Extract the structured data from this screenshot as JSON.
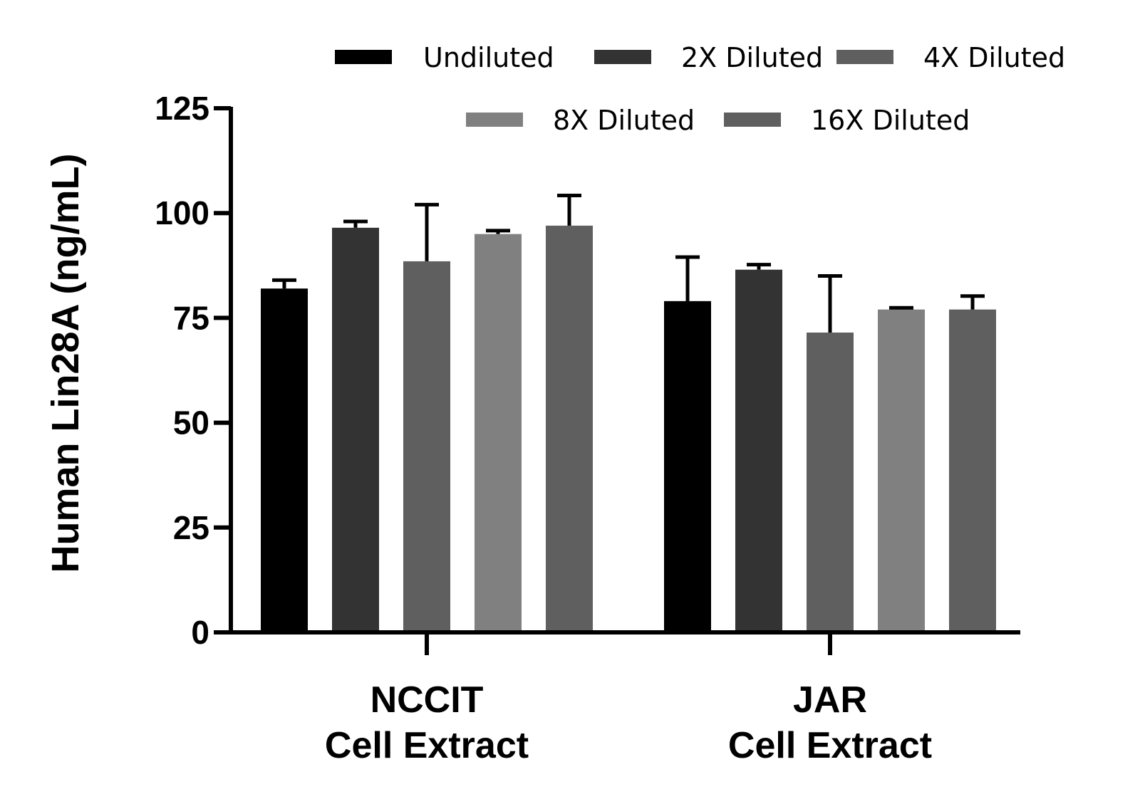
{
  "chart_data": {
    "type": "bar",
    "ylabel": "Human Lin28A (ng/mL)",
    "ylim": [
      0,
      125
    ],
    "yticks": [
      0,
      25,
      50,
      75,
      100,
      125
    ],
    "categories": [
      [
        "NCCIT",
        "Cell Extract"
      ],
      [
        "JAR",
        "Cell Extract"
      ]
    ],
    "legend_position": "top",
    "grid": false,
    "series": [
      {
        "name": "Undiluted",
        "color": "#000000",
        "values": [
          82.0,
          79.0
        ],
        "errors": [
          2.0,
          10.5
        ]
      },
      {
        "name": "2X Diluted",
        "color": "#333333",
        "values": [
          96.5,
          86.5
        ],
        "errors": [
          1.5,
          1.2
        ]
      },
      {
        "name": "4X Diluted",
        "color": "#5f5f5f",
        "values": [
          88.5,
          71.5
        ],
        "errors": [
          13.5,
          13.5
        ]
      },
      {
        "name": "8X Diluted",
        "color": "#808080",
        "values": [
          95.0,
          77.0
        ],
        "errors": [
          0.8,
          0.4
        ]
      },
      {
        "name": "16X Diluted",
        "color": "#5f5f5f",
        "values": [
          97.0,
          77.0
        ],
        "errors": [
          7.2,
          3.2
        ]
      }
    ]
  }
}
